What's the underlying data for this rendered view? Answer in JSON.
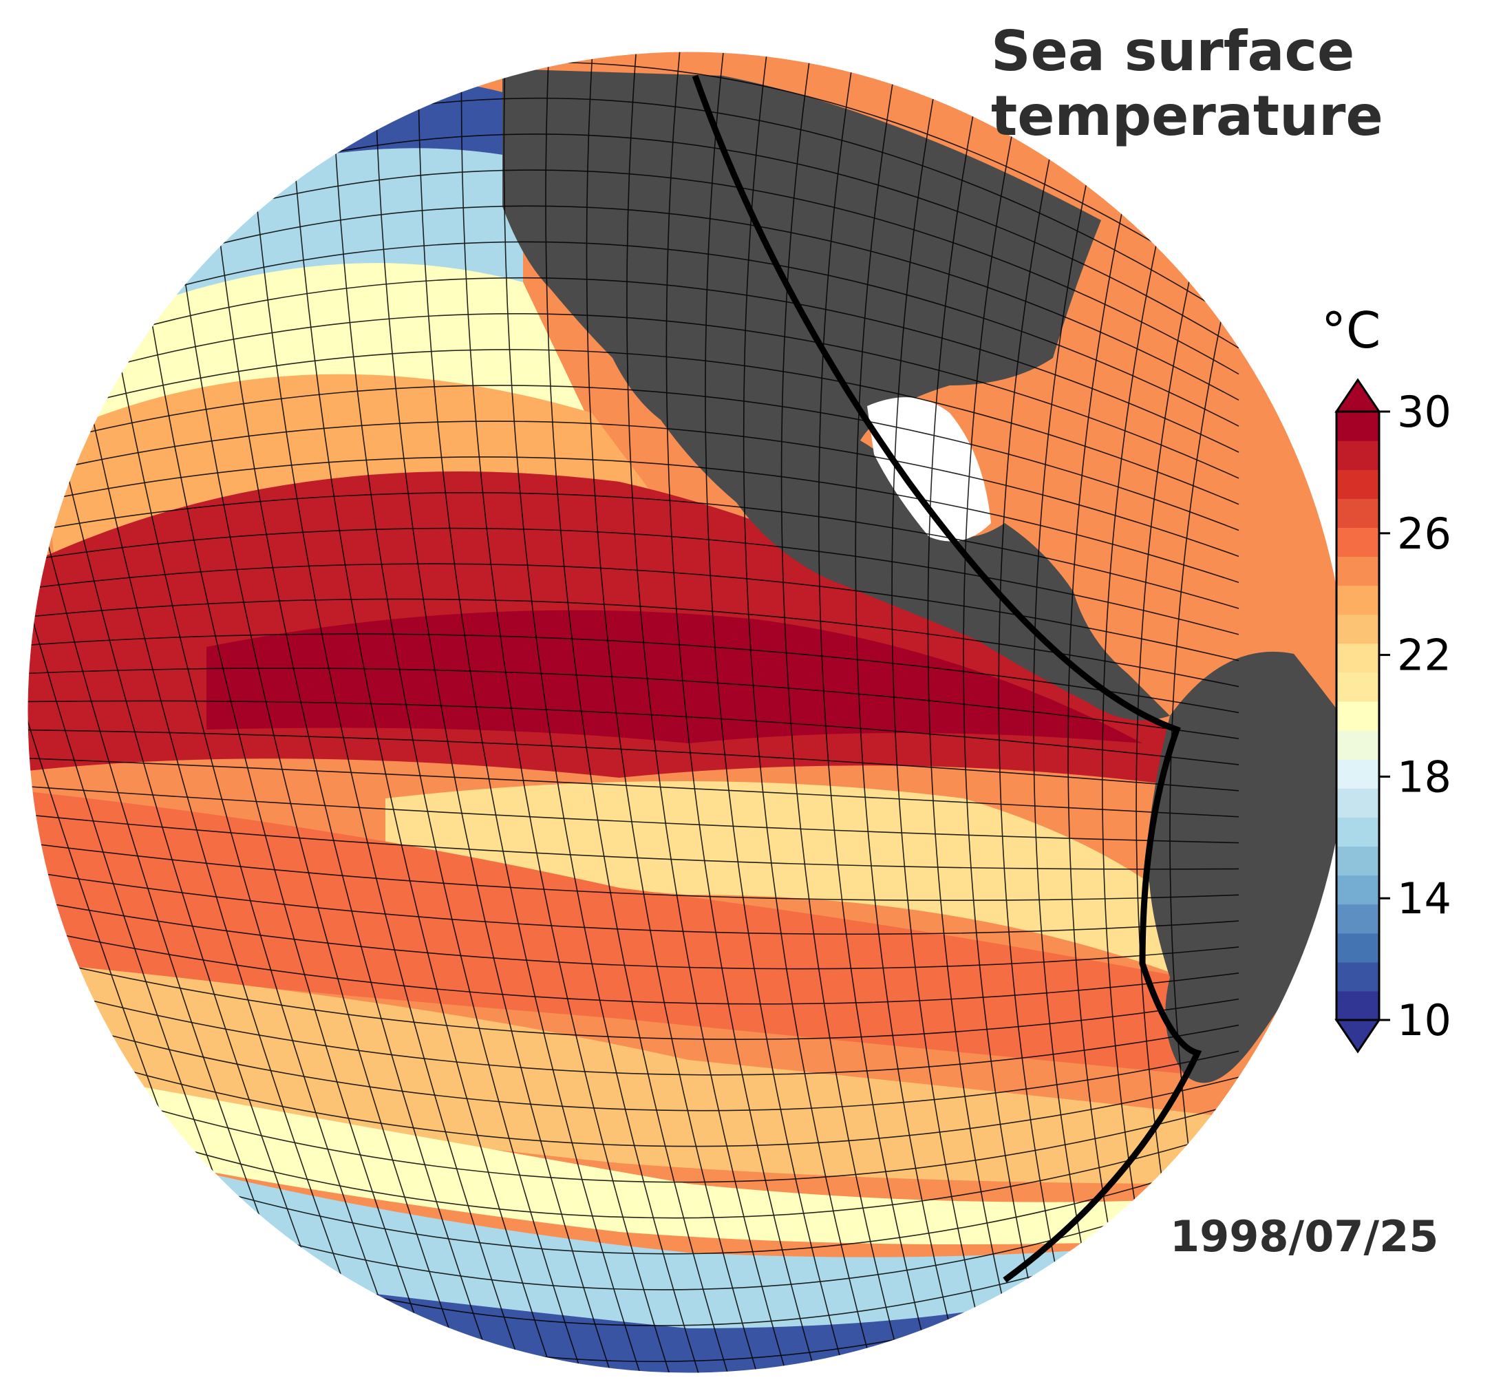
{
  "title": {
    "line1": "Sea surface",
    "line2": "temperature"
  },
  "date": "1998/07/25",
  "colorbar": {
    "unit": "°C",
    "min": 10,
    "max": 30,
    "step": 1,
    "extend": "both",
    "tick_labels": [
      "10",
      "14",
      "18",
      "22",
      "26",
      "30"
    ],
    "colors": [
      "#313695",
      "#3a54a4",
      "#4574b3",
      "#5d8fc2",
      "#74add1",
      "#8fc3dc",
      "#abd9e9",
      "#c6e4ef",
      "#e0f3f8",
      "#eff9db",
      "#ffffbf",
      "#fee99d",
      "#fee090",
      "#fdc374",
      "#fdae61",
      "#f98e52",
      "#f46d43",
      "#e34f34",
      "#d73027",
      "#c01d29",
      "#a50026"
    ]
  },
  "map": {
    "projection": "orthographic",
    "region": "Eastern Pacific Ocean",
    "date_shown": "1998/07/25",
    "land_color": "#4b4b4b",
    "grid_line_color": "#000000"
  }
}
